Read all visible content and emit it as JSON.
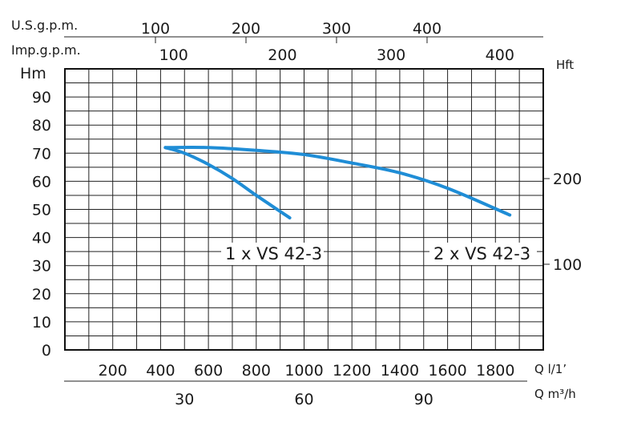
{
  "chart_data": {
    "type": "line",
    "title": "",
    "grid": true,
    "y_axis_left": {
      "label": "Hm",
      "ticks": [
        0,
        10,
        20,
        30,
        40,
        50,
        60,
        70,
        80,
        90
      ],
      "range": [
        0,
        100
      ]
    },
    "y_axis_right": {
      "label": "Hft",
      "ticks": [
        100,
        200
      ]
    },
    "x_axis_lps": {
      "label": "Q l/1’",
      "ticks": [
        200,
        400,
        600,
        800,
        1000,
        1200,
        1400,
        1600,
        1800
      ],
      "range": [
        0,
        2000
      ]
    },
    "x_axis_m3h": {
      "label": "Q m³/h",
      "ticks": [
        30,
        60,
        90
      ]
    },
    "x_axis_usgpm": {
      "label": "U.S.g.p.m.",
      "ticks": [
        100,
        200,
        300,
        400
      ]
    },
    "x_axis_impgpm": {
      "label": "Imp.g.p.m.",
      "ticks": [
        100,
        200,
        300,
        400
      ]
    },
    "series": [
      {
        "name": "1 x VS 42-3",
        "color": "#1f8dd6",
        "x": [
          420,
          500,
          600,
          700,
          800,
          940
        ],
        "y": [
          72,
          70,
          66,
          61,
          55,
          47
        ]
      },
      {
        "name": "2 x VS 42-3",
        "color": "#1f8dd6",
        "x": [
          420,
          600,
          800,
          1000,
          1200,
          1400,
          1600,
          1860
        ],
        "y": [
          72,
          72,
          71,
          69.5,
          66.5,
          63,
          57.5,
          48
        ]
      }
    ]
  }
}
